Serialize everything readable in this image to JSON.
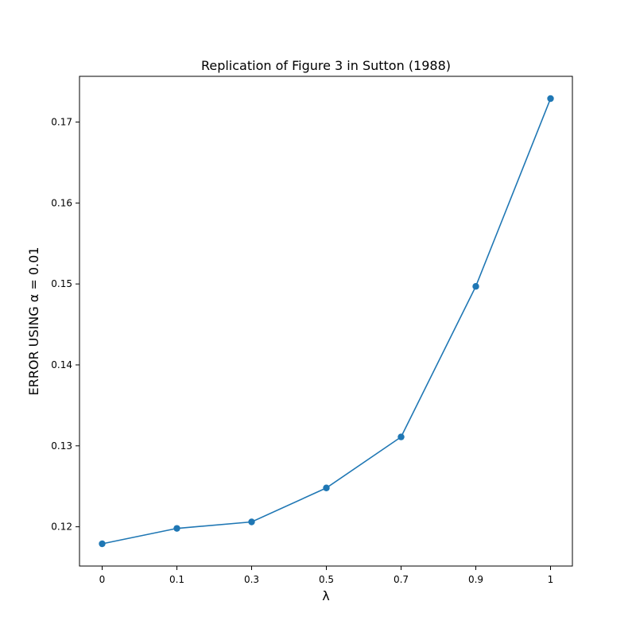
{
  "chart_data": {
    "type": "line",
    "title": "Replication of Figure 3 in Sutton (1988)",
    "xlabel": "λ",
    "ylabel": "ERROR USING α = 0.01",
    "categories": [
      "0",
      "0.1",
      "0.3",
      "0.5",
      "0.7",
      "0.9",
      "1"
    ],
    "series": [
      {
        "values": [
          0.1179,
          0.1198,
          0.1206,
          0.1248,
          0.1311,
          0.1497,
          0.1729
        ],
        "color": "#1f77b4",
        "marker": "circle"
      }
    ],
    "yticks": [
      0.12,
      0.13,
      0.14,
      0.15,
      0.16,
      0.17
    ],
    "ytick_labels": [
      "0.12",
      "0.13",
      "0.14",
      "0.15",
      "0.16",
      "0.17"
    ],
    "ylim": [
      0.11515,
      0.17565
    ],
    "grid": false,
    "legend": "none"
  }
}
